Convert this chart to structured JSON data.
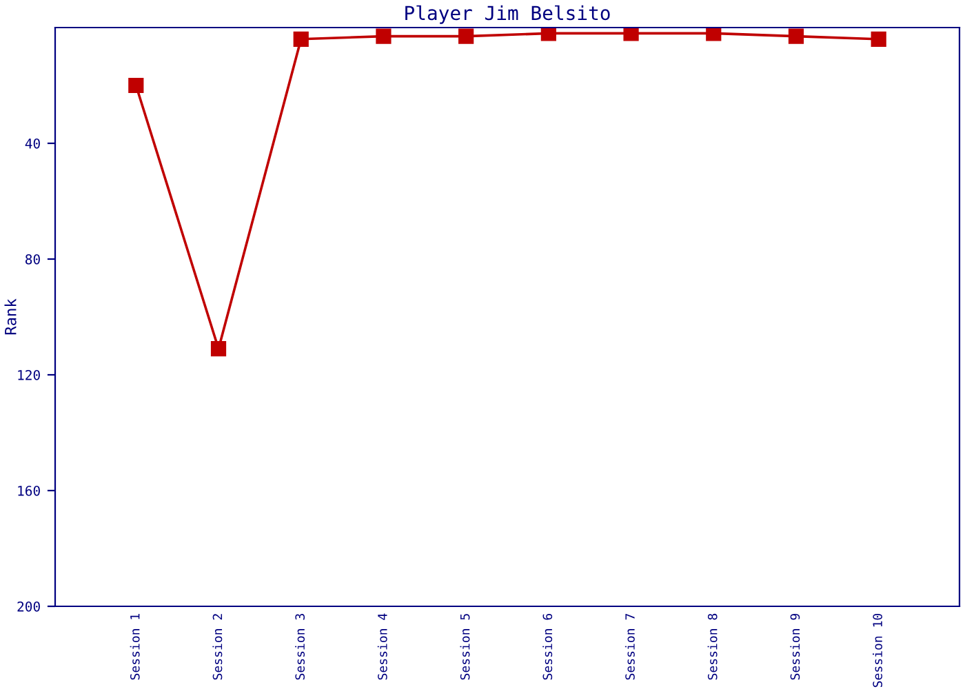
{
  "chart_data": {
    "type": "line",
    "title": "Player Jim Belsito",
    "ylabel": "Rank",
    "categories": [
      "Session 1",
      "Session 2",
      "Session 3",
      "Session 4",
      "Session 5",
      "Session 6",
      "Session 7",
      "Session 8",
      "Session 9",
      "Session 10"
    ],
    "series": [
      {
        "color": "#c00000",
        "values": [
          20,
          111,
          4,
          3,
          3,
          2,
          2,
          2,
          3,
          4
        ]
      }
    ],
    "ylim": [
      200,
      0
    ],
    "yticks": [
      40,
      80,
      120,
      160,
      200
    ],
    "marker": "square",
    "line_style": "solid",
    "grid": false
  }
}
